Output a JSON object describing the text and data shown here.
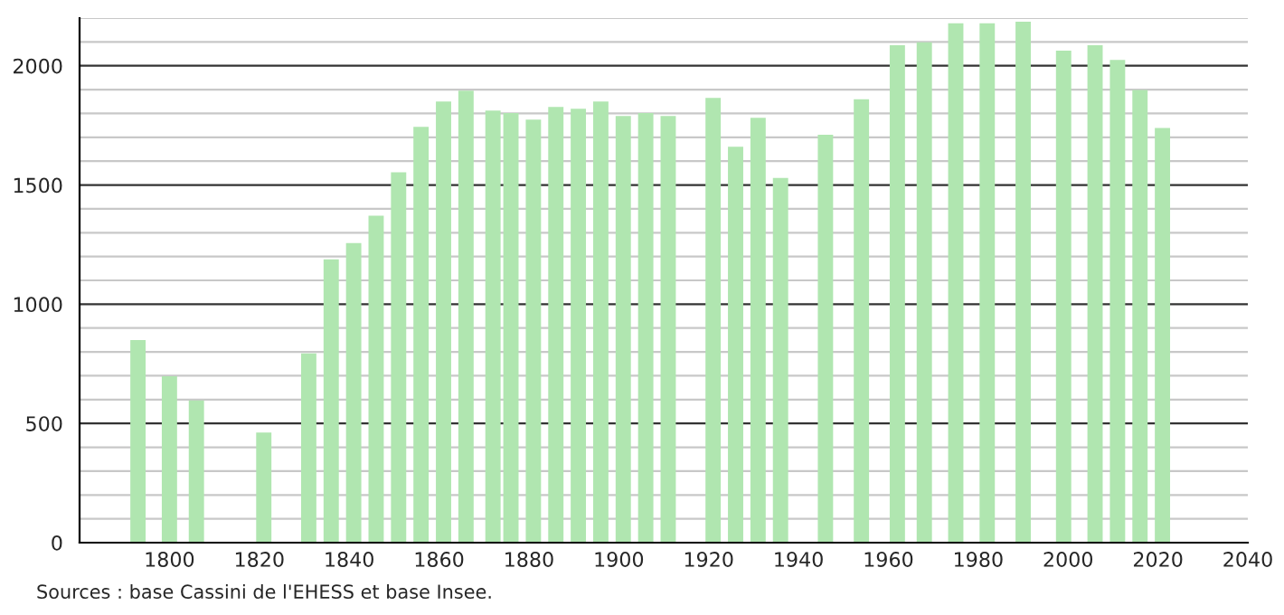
{
  "chart_data": {
    "type": "bar",
    "x": [
      1793,
      1800,
      1806,
      1821,
      1831,
      1836,
      1841,
      1846,
      1851,
      1856,
      1861,
      1866,
      1872,
      1876,
      1881,
      1886,
      1891,
      1896,
      1901,
      1906,
      1911,
      1921,
      1926,
      1931,
      1936,
      1946,
      1954,
      1962,
      1968,
      1975,
      1982,
      1990,
      1999,
      2006,
      2011,
      2016,
      2021
    ],
    "values": [
      850,
      698,
      596,
      462,
      794,
      1188,
      1256,
      1371,
      1553,
      1744,
      1850,
      1896,
      1812,
      1802,
      1774,
      1827,
      1820,
      1850,
      1789,
      1802,
      1789,
      1865,
      1660,
      1782,
      1530,
      1711,
      1860,
      2086,
      2099,
      2178,
      2178,
      2185,
      2063,
      2086,
      2025,
      1898,
      1739
    ],
    "color": "#b0e6b0",
    "xlim": [
      1780,
      2040
    ],
    "xticks": [
      1800,
      1820,
      1840,
      1860,
      1880,
      1900,
      1920,
      1940,
      1960,
      1980,
      2000,
      2020,
      2040
    ],
    "ylim": [
      0,
      2200
    ],
    "yticks": [
      0,
      {
        "value": 100,
        "label": null
      },
      {
        "value": 200,
        "label": null
      },
      {
        "value": 300,
        "label": null
      },
      {
        "value": 400,
        "label": null
      },
      500,
      {
        "value": 600,
        "label": null
      },
      {
        "value": 700,
        "label": null
      },
      {
        "value": 800,
        "label": null
      },
      {
        "value": 900,
        "label": null
      },
      1000,
      {
        "value": 1100,
        "label": null
      },
      {
        "value": 1200,
        "label": null
      },
      {
        "value": 1300,
        "label": null
      },
      {
        "value": 1400,
        "label": null
      },
      1500,
      {
        "value": 1600,
        "label": null
      },
      {
        "value": 1700,
        "label": null
      },
      {
        "value": 1800,
        "label": null
      },
      {
        "value": 1900,
        "label": null
      },
      2000,
      {
        "value": 2100,
        "label": null
      },
      {
        "value": 2200,
        "label": null
      }
    ],
    "grid": "y",
    "annotations": [
      "Sources : base Cassini de l'EHESS et base Insee."
    ]
  }
}
